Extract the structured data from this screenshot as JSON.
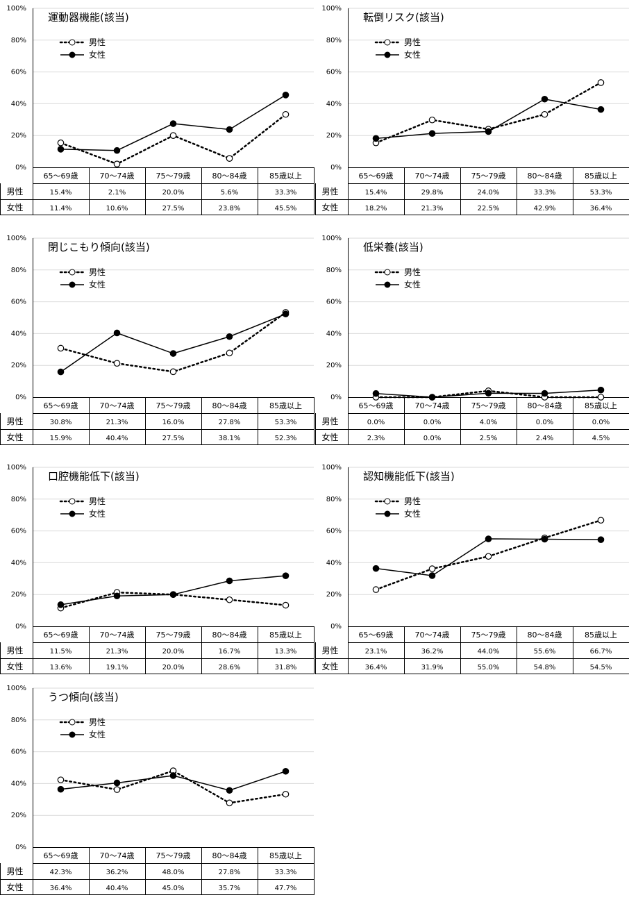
{
  "legend": [
    "男性",
    "女性"
  ],
  "chart_data": [
    {
      "type": "line",
      "title": "運動器機能(該当)",
      "categories": [
        "65～69歳",
        "70～74歳",
        "75～79歳",
        "80～84歳",
        "85歳以上"
      ],
      "ylim": [
        0,
        100
      ],
      "yticks": [
        "0%",
        "20%",
        "40%",
        "60%",
        "80%",
        "100%"
      ],
      "series": [
        {
          "name": "男性",
          "values": [
            15.4,
            2.1,
            20.0,
            5.6,
            33.3
          ],
          "labels": [
            "15.4%",
            "2.1%",
            "20.0%",
            "5.6%",
            "33.3%"
          ]
        },
        {
          "name": "女性",
          "values": [
            11.4,
            10.6,
            27.5,
            23.8,
            45.5
          ],
          "labels": [
            "11.4%",
            "10.6%",
            "27.5%",
            "23.8%",
            "45.5%"
          ]
        }
      ]
    },
    {
      "type": "line",
      "title": "転倒リスク(該当)",
      "categories": [
        "65～69歳",
        "70～74歳",
        "75～79歳",
        "80～84歳",
        "85歳以上"
      ],
      "ylim": [
        0,
        100
      ],
      "yticks": [
        "0%",
        "20%",
        "40%",
        "60%",
        "80%",
        "100%"
      ],
      "series": [
        {
          "name": "男性",
          "values": [
            15.4,
            29.8,
            24.0,
            33.3,
            53.3
          ],
          "labels": [
            "15.4%",
            "29.8%",
            "24.0%",
            "33.3%",
            "53.3%"
          ]
        },
        {
          "name": "女性",
          "values": [
            18.2,
            21.3,
            22.5,
            42.9,
            36.4
          ],
          "labels": [
            "18.2%",
            "21.3%",
            "22.5%",
            "42.9%",
            "36.4%"
          ]
        }
      ]
    },
    {
      "type": "line",
      "title": "閉じこもり傾向(該当)",
      "categories": [
        "65～69歳",
        "70～74歳",
        "75～79歳",
        "80～84歳",
        "85歳以上"
      ],
      "ylim": [
        0,
        100
      ],
      "yticks": [
        "0%",
        "20%",
        "40%",
        "60%",
        "80%",
        "100%"
      ],
      "series": [
        {
          "name": "男性",
          "values": [
            30.8,
            21.3,
            16.0,
            27.8,
            53.3
          ],
          "labels": [
            "30.8%",
            "21.3%",
            "16.0%",
            "27.8%",
            "53.3%"
          ]
        },
        {
          "name": "女性",
          "values": [
            15.9,
            40.4,
            27.5,
            38.1,
            52.3
          ],
          "labels": [
            "15.9%",
            "40.4%",
            "27.5%",
            "38.1%",
            "52.3%"
          ]
        }
      ]
    },
    {
      "type": "line",
      "title": "低栄養(該当)",
      "categories": [
        "65～69歳",
        "70～74歳",
        "75～79歳",
        "80～84歳",
        "85歳以上"
      ],
      "ylim": [
        0,
        100
      ],
      "yticks": [
        "0%",
        "20%",
        "40%",
        "60%",
        "80%",
        "100%"
      ],
      "series": [
        {
          "name": "男性",
          "values": [
            0.0,
            0.0,
            4.0,
            0.0,
            0.0
          ],
          "labels": [
            "0.0%",
            "0.0%",
            "4.0%",
            "0.0%",
            "0.0%"
          ]
        },
        {
          "name": "女性",
          "values": [
            2.3,
            0.0,
            2.5,
            2.4,
            4.5
          ],
          "labels": [
            "2.3%",
            "0.0%",
            "2.5%",
            "2.4%",
            "4.5%"
          ]
        }
      ]
    },
    {
      "type": "line",
      "title": "口腔機能低下(該当)",
      "categories": [
        "65～69歳",
        "70～74歳",
        "75～79歳",
        "80～84歳",
        "85歳以上"
      ],
      "ylim": [
        0,
        100
      ],
      "yticks": [
        "0%",
        "20%",
        "40%",
        "60%",
        "80%",
        "100%"
      ],
      "series": [
        {
          "name": "男性",
          "values": [
            11.5,
            21.3,
            20.0,
            16.7,
            13.3
          ],
          "labels": [
            "11.5%",
            "21.3%",
            "20.0%",
            "16.7%",
            "13.3%"
          ]
        },
        {
          "name": "女性",
          "values": [
            13.6,
            19.1,
            20.0,
            28.6,
            31.8
          ],
          "labels": [
            "13.6%",
            "19.1%",
            "20.0%",
            "28.6%",
            "31.8%"
          ]
        }
      ]
    },
    {
      "type": "line",
      "title": "認知機能低下(該当)",
      "categories": [
        "65～69歳",
        "70～74歳",
        "75～79歳",
        "80～84歳",
        "85歳以上"
      ],
      "ylim": [
        0,
        100
      ],
      "yticks": [
        "0%",
        "20%",
        "40%",
        "60%",
        "80%",
        "100%"
      ],
      "series": [
        {
          "name": "男性",
          "values": [
            23.1,
            36.2,
            44.0,
            55.6,
            66.7
          ],
          "labels": [
            "23.1%",
            "36.2%",
            "44.0%",
            "55.6%",
            "66.7%"
          ]
        },
        {
          "name": "女性",
          "values": [
            36.4,
            31.9,
            55.0,
            54.8,
            54.5
          ],
          "labels": [
            "36.4%",
            "31.9%",
            "55.0%",
            "54.8%",
            "54.5%"
          ]
        }
      ]
    },
    {
      "type": "line",
      "title": "うつ傾向(該当)",
      "categories": [
        "65～69歳",
        "70～74歳",
        "75～79歳",
        "80～84歳",
        "85歳以上"
      ],
      "ylim": [
        0,
        100
      ],
      "yticks": [
        "0%",
        "20%",
        "40%",
        "60%",
        "80%",
        "100%"
      ],
      "series": [
        {
          "name": "男性",
          "values": [
            42.3,
            36.2,
            48.0,
            27.8,
            33.3
          ],
          "labels": [
            "42.3%",
            "36.2%",
            "48.0%",
            "27.8%",
            "33.3%"
          ]
        },
        {
          "name": "女性",
          "values": [
            36.4,
            40.4,
            45.0,
            35.7,
            47.7
          ],
          "labels": [
            "36.4%",
            "40.4%",
            "45.0%",
            "35.7%",
            "47.7%"
          ]
        }
      ]
    }
  ]
}
